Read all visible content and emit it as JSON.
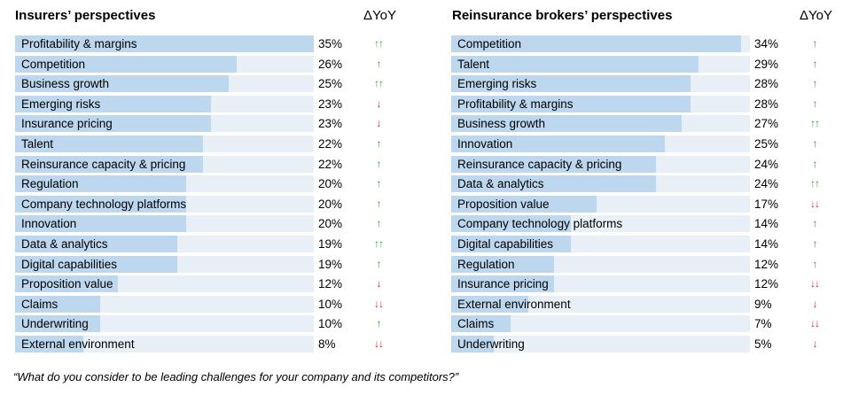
{
  "chart_data": [
    {
      "type": "bar",
      "title": "Insurers’ perspectives",
      "change_header": "ΔYoY",
      "categories": [
        "Profitability & margins",
        "Competition",
        "Business growth",
        "Emerging risks",
        "Insurance pricing",
        "Talent",
        "Reinsurance capacity & pricing",
        "Regulation",
        "Company technology platforms",
        "Innovation",
        "Data & analytics",
        "Digital capabilities",
        "Proposition value",
        "Claims",
        "Underwriting",
        "External environment"
      ],
      "values": [
        35,
        26,
        25,
        23,
        23,
        22,
        22,
        20,
        20,
        20,
        19,
        19,
        12,
        10,
        10,
        8
      ],
      "value_labels": [
        "35%",
        "26%",
        "25%",
        "23%",
        "23%",
        "22%",
        "22%",
        "20%",
        "20%",
        "20%",
        "19%",
        "19%",
        "12%",
        "10%",
        "10%",
        "8%"
      ],
      "yoy": [
        "↑↑",
        "↑",
        "↑↑",
        "↓",
        "↓",
        "↑",
        "↑",
        "↑",
        "↑",
        "↑",
        "↑↑",
        "↑",
        "↓",
        "↓↓",
        "↑",
        "↓↓"
      ],
      "xlim": [
        0,
        35
      ]
    },
    {
      "type": "bar",
      "title": "Reinsurance brokers’ perspectives",
      "change_header": "ΔYoY",
      "categories": [
        "Competition",
        "Talent",
        "Emerging risks",
        "Profitability & margins",
        "Business growth",
        "Innovation",
        "Reinsurance capacity & pricing",
        "Data & analytics",
        "Proposition value",
        "Company technology platforms",
        "Digital capabilities",
        "Regulation",
        "Insurance pricing",
        "External environment",
        "Claims",
        "Underwriting"
      ],
      "values": [
        34,
        29,
        28,
        28,
        27,
        25,
        24,
        24,
        17,
        14,
        14,
        12,
        12,
        9,
        7,
        5
      ],
      "value_labels": [
        "34%",
        "29%",
        "28%",
        "28%",
        "27%",
        "25%",
        "24%",
        "24%",
        "17%",
        "14%",
        "14%",
        "12%",
        "12%",
        "9%",
        "7%",
        "5%"
      ],
      "yoy": [
        "↑",
        "↑",
        "↑",
        "↑",
        "↑↑",
        "↑",
        "↑",
        "↑↑",
        "↓↓",
        "↑",
        "↑",
        "↑",
        "↓↓",
        "↓",
        "↓↓",
        "↓"
      ],
      "xlim": [
        0,
        35
      ]
    }
  ],
  "colors": {
    "bar": "#bdd7ee",
    "track": "#e9eff7",
    "up": "#2e9e3a",
    "down": "#e02020"
  },
  "footnote": "“What do you consider to be leading challenges for your company and its competitors?”"
}
